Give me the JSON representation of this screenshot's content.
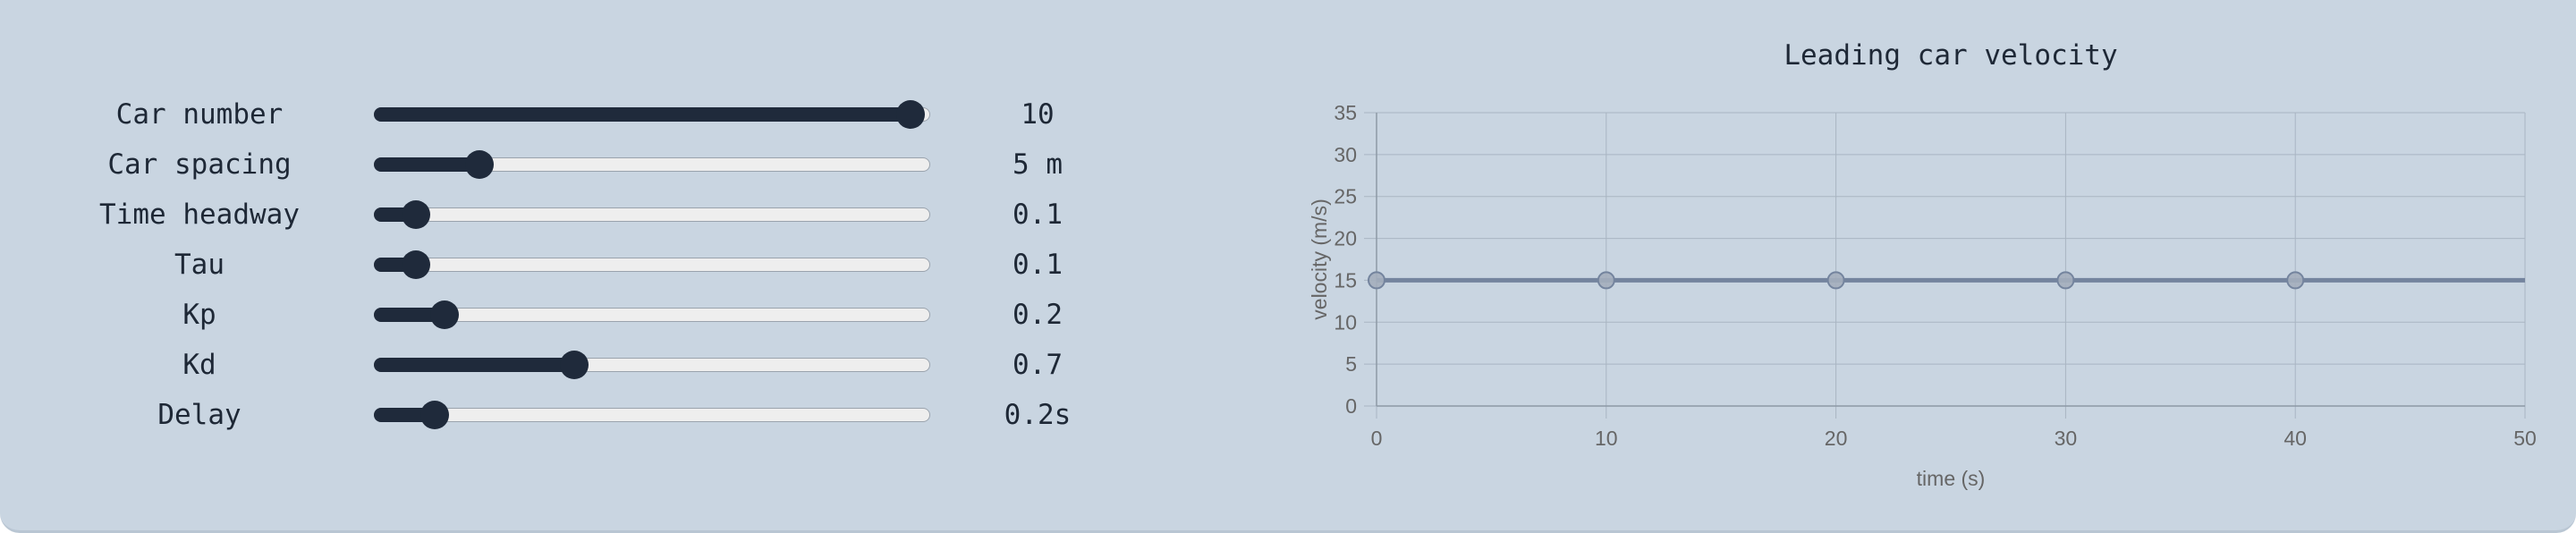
{
  "controls": [
    {
      "label": "Car number",
      "value": "10",
      "fraction": 0.965
    },
    {
      "label": "Car spacing",
      "value": "5 m",
      "fraction": 0.19
    },
    {
      "label": "Time headway",
      "value": "0.1",
      "fraction": 0.075
    },
    {
      "label": "Tau",
      "value": "0.1",
      "fraction": 0.075
    },
    {
      "label": "Kp",
      "value": "0.2",
      "fraction": 0.127
    },
    {
      "label": "Kd",
      "value": "0.7",
      "fraction": 0.36
    },
    {
      "label": "Delay",
      "value": "0.2s",
      "fraction": 0.11
    }
  ],
  "colors": {
    "panel": "#c9d5e1",
    "slider_fill": "#1f2a3b",
    "slider_track": "#eeeeee",
    "grid": "#a9b5c2",
    "axis_text": "#666666",
    "series_line": "#74849e",
    "point_fill": "#a4aebd",
    "point_stroke": "#74849e"
  },
  "chart_data": {
    "type": "line",
    "title": "Leading car velocity",
    "xlabel": "time (s)",
    "ylabel": "velocity (m/s)",
    "xlim": [
      0,
      50
    ],
    "ylim": [
      0,
      35
    ],
    "xticks": [
      0,
      10,
      20,
      30,
      40,
      50
    ],
    "yticks": [
      0,
      5,
      10,
      15,
      20,
      25,
      30,
      35
    ],
    "grid": true,
    "series": [
      {
        "name": "velocity",
        "x": [
          0,
          10,
          20,
          30,
          40,
          50
        ],
        "y": [
          15,
          15,
          15,
          15,
          15,
          15
        ],
        "markers_x": [
          0,
          10,
          20,
          30,
          40
        ]
      }
    ]
  }
}
